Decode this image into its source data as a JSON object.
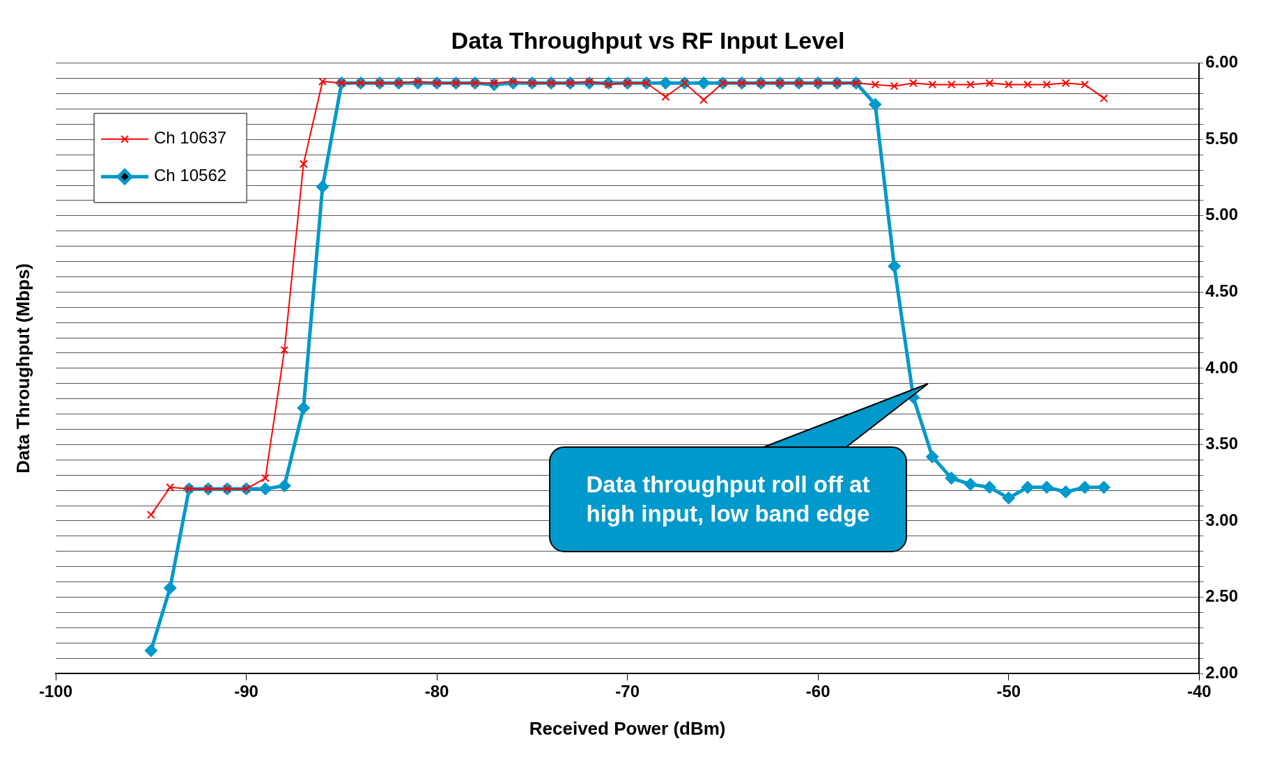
{
  "chart_data": {
    "type": "line",
    "title": "Data Throughput vs RF Input Level",
    "xlabel": "Received Power (dBm)",
    "ylabel": "Data Throughput (Mbps)",
    "x": [
      -95,
      -94,
      -93,
      -92,
      -91,
      -90,
      -89,
      -88,
      -87,
      -86,
      -85,
      -84,
      -83,
      -82,
      -81,
      -80,
      -79,
      -78,
      -77,
      -76,
      -75,
      -74,
      -73,
      -72,
      -71,
      -70,
      -69,
      -68,
      -67,
      -66,
      -65,
      -64,
      -63,
      -62,
      -61,
      -60,
      -59,
      -58,
      -57,
      -56,
      -55,
      -54,
      -53,
      -52,
      -51,
      -50,
      -49,
      -48,
      -47,
      -46,
      -45
    ],
    "series": [
      {
        "name": "Ch 10637",
        "color": "#ff0000",
        "marker": "cross",
        "values": [
          3.04,
          3.22,
          3.21,
          3.21,
          3.21,
          3.21,
          3.28,
          4.12,
          5.34,
          5.88,
          5.87,
          5.87,
          5.87,
          5.87,
          5.88,
          5.87,
          5.87,
          5.87,
          5.87,
          5.88,
          5.87,
          5.87,
          5.87,
          5.88,
          5.86,
          5.87,
          5.87,
          5.78,
          5.87,
          5.76,
          5.87,
          5.87,
          5.87,
          5.87,
          5.87,
          5.87,
          5.87,
          5.87,
          5.86,
          5.85,
          5.87,
          5.86,
          5.86,
          5.86,
          5.87,
          5.86,
          5.86,
          5.86,
          5.87,
          5.86,
          5.77
        ]
      },
      {
        "name": "Ch 10562",
        "color": "#0099cc",
        "marker": "diamond",
        "values": [
          2.15,
          2.56,
          3.21,
          3.21,
          3.21,
          3.21,
          3.21,
          3.23,
          3.74,
          5.19,
          5.87,
          5.87,
          5.87,
          5.87,
          5.87,
          5.87,
          5.87,
          5.87,
          5.86,
          5.87,
          5.87,
          5.87,
          5.87,
          5.87,
          5.87,
          5.87,
          5.87,
          5.87,
          5.87,
          5.87,
          5.87,
          5.87,
          5.87,
          5.87,
          5.87,
          5.87,
          5.87,
          5.87,
          5.73,
          4.67,
          3.81,
          3.42,
          3.28,
          3.24,
          3.22,
          3.15,
          3.22,
          3.22,
          3.19,
          3.22,
          3.22
        ]
      }
    ],
    "xlim": [
      -100,
      -40
    ],
    "xticks": [
      -100,
      -90,
      -80,
      -70,
      -60,
      -50,
      -40
    ],
    "ylim": [
      2,
      6
    ],
    "yticks": [
      {
        "value": 2,
        "label": "2.00"
      },
      {
        "value": 2.1,
        "label": null
      },
      {
        "value": 2.2,
        "label": null
      },
      {
        "value": 2.3,
        "label": null
      },
      {
        "value": 2.4,
        "label": null
      },
      {
        "value": 2.5,
        "label": "2.50"
      },
      {
        "value": 2.6,
        "label": null
      },
      {
        "value": 2.7,
        "label": null
      },
      {
        "value": 2.8,
        "label": null
      },
      {
        "value": 2.9,
        "label": null
      },
      {
        "value": 3,
        "label": "3.00"
      },
      {
        "value": 3.1,
        "label": null
      },
      {
        "value": 3.2,
        "label": null
      },
      {
        "value": 3.3,
        "label": null
      },
      {
        "value": 3.4,
        "label": null
      },
      {
        "value": 3.5,
        "label": "3.50"
      },
      {
        "value": 3.6,
        "label": null
      },
      {
        "value": 3.7,
        "label": null
      },
      {
        "value": 3.8,
        "label": null
      },
      {
        "value": 3.9,
        "label": null
      },
      {
        "value": 4,
        "label": "4.00"
      },
      {
        "value": 4.1,
        "label": null
      },
      {
        "value": 4.2,
        "label": null
      },
      {
        "value": 4.3,
        "label": null
      },
      {
        "value": 4.4,
        "label": null
      },
      {
        "value": 4.5,
        "label": "4.50"
      },
      {
        "value": 4.6,
        "label": null
      },
      {
        "value": 4.7,
        "label": null
      },
      {
        "value": 4.8,
        "label": null
      },
      {
        "value": 4.9,
        "label": null
      },
      {
        "value": 5,
        "label": "5.00"
      },
      {
        "value": 5.1,
        "label": null
      },
      {
        "value": 5.2,
        "label": null
      },
      {
        "value": 5.3,
        "label": null
      },
      {
        "value": 5.4,
        "label": null
      },
      {
        "value": 5.5,
        "label": "5.50"
      },
      {
        "value": 5.6,
        "label": null
      },
      {
        "value": 5.7,
        "label": null
      },
      {
        "value": 5.8,
        "label": null
      },
      {
        "value": 5.9,
        "label": null
      },
      {
        "value": 6,
        "label": "6.00"
      }
    ],
    "grid": "y",
    "legend": "top left",
    "annotations": [
      "Data throughput roll off at high input, low band edge"
    ]
  }
}
